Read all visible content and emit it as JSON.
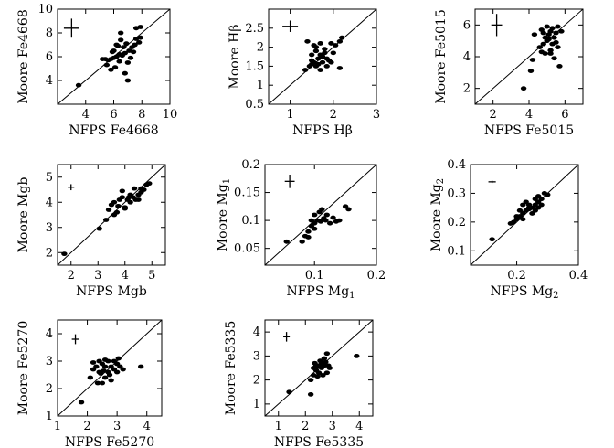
{
  "chart_data": [
    {
      "type": "scatter",
      "xlabel": "NFPS Fe4668",
      "ylabel": "Moore Fe4668",
      "xlim": [
        2,
        10
      ],
      "ylim": [
        2,
        10
      ],
      "xticks": [
        4,
        6,
        8,
        10
      ],
      "yticks": [
        4,
        6,
        8,
        10
      ],
      "diagonal": true,
      "error_bar": {
        "x": 3,
        "y": 8.4,
        "xerr": 0.55,
        "yerr": 0.8
      },
      "points": [
        [
          3.5,
          3.6
        ],
        [
          5.4,
          5.8
        ],
        [
          5.6,
          5.7
        ],
        [
          5.8,
          5.8
        ],
        [
          6.0,
          5.9
        ],
        [
          6.2,
          6.0
        ],
        [
          5.9,
          6.4
        ],
        [
          6.4,
          6.2
        ],
        [
          6.6,
          6.1
        ],
        [
          6.8,
          6.3
        ],
        [
          6.3,
          6.9
        ],
        [
          6.5,
          7.4
        ],
        [
          6.2,
          7.0
        ],
        [
          6.9,
          7.1
        ],
        [
          7.1,
          6.5
        ],
        [
          7.3,
          6.8
        ],
        [
          7.5,
          7.0
        ],
        [
          7.6,
          7.5
        ],
        [
          7.8,
          7.2
        ],
        [
          7.9,
          7.6
        ],
        [
          7.6,
          8.4
        ],
        [
          7.9,
          8.5
        ],
        [
          6.5,
          8.0
        ],
        [
          5.8,
          4.9
        ],
        [
          6.8,
          4.6
        ],
        [
          7.0,
          4.0
        ],
        [
          6.1,
          5.1
        ],
        [
          5.5,
          5.3
        ],
        [
          7.0,
          5.5
        ],
        [
          7.2,
          5.9
        ],
        [
          6.7,
          6.8
        ],
        [
          6.0,
          6.5
        ],
        [
          5.2,
          5.8
        ],
        [
          6.4,
          5.6
        ],
        [
          7.4,
          6.4
        ]
      ]
    },
    {
      "type": "scatter",
      "xlabel": "NFPS Hβ",
      "ylabel": "Moore Hβ",
      "xlim": [
        0.5,
        3
      ],
      "ylim": [
        0.5,
        3
      ],
      "xticks": [
        1,
        2,
        3
      ],
      "yticks": [
        0.5,
        1,
        1.5,
        2,
        2.5
      ],
      "diagonal": true,
      "error_bar": {
        "x": 1.0,
        "y": 2.55,
        "xerr": 0.18,
        "yerr": 0.15
      },
      "points": [
        [
          1.35,
          1.4
        ],
        [
          1.45,
          1.5
        ],
        [
          1.5,
          1.55
        ],
        [
          1.55,
          1.6
        ],
        [
          1.6,
          1.5
        ],
        [
          1.65,
          1.7
        ],
        [
          1.7,
          1.8
        ],
        [
          1.75,
          1.75
        ],
        [
          1.8,
          1.85
        ],
        [
          1.85,
          1.7
        ],
        [
          1.9,
          1.65
        ],
        [
          1.95,
          1.6
        ],
        [
          1.6,
          2.0
        ],
        [
          1.55,
          2.05
        ],
        [
          1.4,
          2.15
        ],
        [
          1.7,
          2.1
        ],
        [
          1.8,
          1.95
        ],
        [
          2.0,
          1.85
        ],
        [
          2.05,
          2.05
        ],
        [
          2.15,
          2.15
        ],
        [
          2.2,
          2.25
        ],
        [
          2.15,
          1.45
        ],
        [
          1.85,
          1.5
        ],
        [
          1.5,
          1.8
        ],
        [
          1.65,
          1.55
        ],
        [
          1.75,
          1.6
        ],
        [
          1.7,
          1.4
        ],
        [
          1.95,
          2.1
        ],
        [
          1.6,
          1.9
        ],
        [
          1.5,
          1.65
        ]
      ]
    },
    {
      "type": "scatter",
      "xlabel": "NFPS Fe5015",
      "ylabel": "Moore Fe5015",
      "xlim": [
        1,
        7
      ],
      "ylim": [
        1,
        7
      ],
      "xticks": [
        2,
        4,
        6
      ],
      "yticks": [
        2,
        4,
        6
      ],
      "diagonal": true,
      "error_bar": {
        "x": 2.2,
        "y": 6.0,
        "xerr": 0.3,
        "yerr": 0.7
      },
      "points": [
        [
          3.7,
          2.0
        ],
        [
          4.1,
          3.1
        ],
        [
          4.2,
          3.8
        ],
        [
          4.3,
          5.4
        ],
        [
          4.6,
          4.6
        ],
        [
          4.7,
          4.3
        ],
        [
          4.8,
          4.8
        ],
        [
          4.9,
          5.2
        ],
        [
          5.0,
          5.0
        ],
        [
          5.1,
          5.4
        ],
        [
          5.2,
          5.6
        ],
        [
          5.3,
          5.8
        ],
        [
          5.0,
          5.9
        ],
        [
          4.8,
          5.5
        ],
        [
          5.4,
          5.2
        ],
        [
          5.5,
          5.5
        ],
        [
          5.6,
          5.9
        ],
        [
          5.6,
          4.6
        ],
        [
          5.7,
          3.4
        ],
        [
          5.4,
          3.9
        ],
        [
          5.2,
          4.4
        ],
        [
          4.9,
          4.2
        ],
        [
          5.3,
          4.8
        ],
        [
          5.5,
          4.9
        ],
        [
          5.1,
          5.1
        ],
        [
          4.7,
          5.7
        ],
        [
          5.8,
          5.6
        ],
        [
          5.2,
          4.2
        ]
      ]
    },
    {
      "type": "scatter",
      "xlabel": "NFPS Mgb",
      "ylabel": "Moore Mgb",
      "xlim": [
        1.5,
        5.5
      ],
      "ylim": [
        1.5,
        5.5
      ],
      "xticks": [
        2,
        3,
        4,
        5
      ],
      "yticks": [
        2,
        3,
        4,
        5
      ],
      "diagonal": true,
      "error_bar": {
        "x": 2.0,
        "y": 4.6,
        "xerr": 0.12,
        "yerr": 0.12
      },
      "points": [
        [
          1.75,
          1.95
        ],
        [
          3.05,
          2.95
        ],
        [
          3.3,
          3.3
        ],
        [
          3.4,
          3.7
        ],
        [
          3.5,
          3.9
        ],
        [
          3.6,
          4.0
        ],
        [
          3.7,
          3.6
        ],
        [
          3.8,
          4.1
        ],
        [
          3.9,
          4.2
        ],
        [
          4.0,
          3.8
        ],
        [
          4.1,
          4.1
        ],
        [
          4.2,
          4.3
        ],
        [
          4.3,
          4.2
        ],
        [
          4.4,
          4.1
        ],
        [
          4.5,
          4.3
        ],
        [
          4.6,
          4.4
        ],
        [
          4.7,
          4.5
        ],
        [
          4.8,
          4.7
        ],
        [
          4.9,
          4.75
        ],
        [
          3.9,
          4.45
        ],
        [
          4.0,
          3.75
        ],
        [
          4.2,
          4.0
        ],
        [
          4.5,
          4.1
        ],
        [
          3.6,
          3.5
        ],
        [
          4.35,
          4.55
        ],
        [
          4.6,
          4.55
        ],
        [
          4.15,
          4.2
        ],
        [
          3.75,
          3.85
        ]
      ]
    },
    {
      "type": "scatter",
      "xlabel": "NFPS Mg1",
      "ylabel": "Moore Mg1",
      "xlim": [
        0.02,
        0.2
      ],
      "ylim": [
        0.02,
        0.2
      ],
      "xticks": [
        0.1,
        0.2
      ],
      "yticks": [
        0.05,
        0.1,
        0.15,
        0.2
      ],
      "diagonal": true,
      "error_bar": {
        "x": 0.06,
        "y": 0.17,
        "xerr": 0.008,
        "yerr": 0.012
      },
      "points": [
        [
          0.055,
          0.062
        ],
        [
          0.08,
          0.062
        ],
        [
          0.085,
          0.072
        ],
        [
          0.09,
          0.08
        ],
        [
          0.095,
          0.09
        ],
        [
          0.1,
          0.095
        ],
        [
          0.105,
          0.1
        ],
        [
          0.11,
          0.098
        ],
        [
          0.115,
          0.104
        ],
        [
          0.12,
          0.11
        ],
        [
          0.095,
          0.1
        ],
        [
          0.1,
          0.11
        ],
        [
          0.108,
          0.115
        ],
        [
          0.112,
          0.12
        ],
        [
          0.118,
          0.1
        ],
        [
          0.125,
          0.095
        ],
        [
          0.13,
          0.105
        ],
        [
          0.135,
          0.098
        ],
        [
          0.14,
          0.1
        ],
        [
          0.15,
          0.125
        ],
        [
          0.155,
          0.12
        ],
        [
          0.09,
          0.07
        ],
        [
          0.1,
          0.085
        ]
      ]
    },
    {
      "type": "scatter",
      "xlabel": "NFPS Mg2",
      "ylabel": "Moore Mg2",
      "xlim": [
        0.05,
        0.4
      ],
      "ylim": [
        0.05,
        0.4
      ],
      "xticks": [
        0.2,
        0.4
      ],
      "yticks": [
        0.1,
        0.2,
        0.3,
        0.4
      ],
      "diagonal": true,
      "error_bar": {
        "x": 0.12,
        "y": 0.34,
        "xerr": 0.012,
        "yerr": 0.004
      },
      "points": [
        [
          0.12,
          0.14
        ],
        [
          0.18,
          0.195
        ],
        [
          0.19,
          0.2
        ],
        [
          0.2,
          0.21
        ],
        [
          0.21,
          0.22
        ],
        [
          0.22,
          0.23
        ],
        [
          0.23,
          0.24
        ],
        [
          0.24,
          0.245
        ],
        [
          0.25,
          0.25
        ],
        [
          0.26,
          0.26
        ],
        [
          0.27,
          0.27
        ],
        [
          0.28,
          0.28
        ],
        [
          0.29,
          0.3
        ],
        [
          0.3,
          0.295
        ],
        [
          0.22,
          0.26
        ],
        [
          0.23,
          0.27
        ],
        [
          0.24,
          0.25
        ],
        [
          0.26,
          0.28
        ],
        [
          0.25,
          0.23
        ],
        [
          0.27,
          0.25
        ],
        [
          0.28,
          0.26
        ],
        [
          0.21,
          0.24
        ],
        [
          0.2,
          0.22
        ],
        [
          0.24,
          0.26
        ],
        [
          0.27,
          0.29
        ],
        [
          0.22,
          0.21
        ],
        [
          0.26,
          0.24
        ]
      ]
    },
    {
      "type": "scatter",
      "xlabel": "NFPS Fe5270",
      "ylabel": "Moore Fe5270",
      "xlim": [
        1,
        4.5
      ],
      "ylim": [
        1,
        4.5
      ],
      "xticks": [
        1,
        2,
        3,
        4
      ],
      "yticks": [
        1,
        2,
        3,
        4
      ],
      "diagonal": true,
      "error_bar": {
        "x": 1.6,
        "y": 3.8,
        "xerr": 0.12,
        "yerr": 0.18
      },
      "points": [
        [
          1.8,
          1.5
        ],
        [
          2.1,
          2.4
        ],
        [
          2.2,
          2.7
        ],
        [
          2.3,
          2.8
        ],
        [
          2.4,
          2.6
        ],
        [
          2.5,
          2.9
        ],
        [
          2.5,
          2.2
        ],
        [
          2.6,
          2.8
        ],
        [
          2.6,
          2.4
        ],
        [
          2.7,
          3.0
        ],
        [
          2.7,
          2.6
        ],
        [
          2.8,
          2.8
        ],
        [
          2.8,
          2.3
        ],
        [
          2.9,
          2.7
        ],
        [
          2.9,
          3.0
        ],
        [
          3.0,
          2.6
        ],
        [
          3.0,
          2.9
        ],
        [
          3.1,
          2.8
        ],
        [
          3.2,
          2.7
        ],
        [
          3.8,
          2.8
        ],
        [
          2.4,
          3.0
        ],
        [
          2.35,
          2.2
        ],
        [
          2.6,
          3.05
        ],
        [
          2.75,
          2.5
        ],
        [
          2.55,
          2.65
        ],
        [
          2.2,
          2.95
        ],
        [
          3.05,
          3.1
        ],
        [
          2.45,
          2.55
        ]
      ]
    },
    {
      "type": "scatter",
      "xlabel": "NFPS Fe5335",
      "ylabel": "Moore Fe5335",
      "xlim": [
        0.5,
        4.5
      ],
      "ylim": [
        0.5,
        4.5
      ],
      "xticks": [
        1,
        2,
        3,
        4
      ],
      "yticks": [
        1,
        2,
        3,
        4
      ],
      "diagonal": true,
      "error_bar": {
        "x": 1.3,
        "y": 3.8,
        "xerr": 0.12,
        "yerr": 0.2
      },
      "points": [
        [
          1.4,
          1.5
        ],
        [
          2.2,
          1.4
        ],
        [
          2.2,
          2.0
        ],
        [
          2.3,
          2.2
        ],
        [
          2.4,
          2.4
        ],
        [
          2.5,
          2.6
        ],
        [
          2.6,
          2.5
        ],
        [
          2.6,
          2.7
        ],
        [
          2.7,
          2.6
        ],
        [
          2.7,
          2.9
        ],
        [
          2.8,
          3.1
        ],
        [
          2.8,
          2.3
        ],
        [
          2.9,
          2.5
        ],
        [
          3.9,
          3.0
        ],
        [
          2.4,
          2.6
        ],
        [
          2.3,
          2.5
        ],
        [
          2.5,
          2.3
        ],
        [
          2.75,
          2.75
        ],
        [
          2.55,
          2.8
        ],
        [
          2.65,
          2.2
        ],
        [
          2.85,
          2.6
        ],
        [
          2.45,
          2.15
        ],
        [
          2.35,
          2.7
        ]
      ]
    }
  ]
}
